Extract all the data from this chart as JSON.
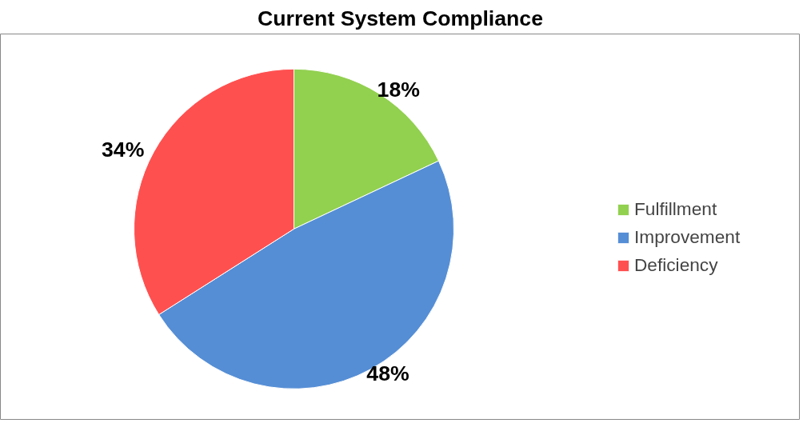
{
  "chart_data": {
    "type": "pie",
    "title": "Current System Compliance",
    "categories": [
      "Fulfillment",
      "Improvement",
      "Deficiency"
    ],
    "values": [
      18,
      48,
      34
    ],
    "colors": [
      "#92d050",
      "#558ed5",
      "#ff5050"
    ],
    "value_labels": [
      "18%",
      "48%",
      "34%"
    ],
    "legend": "right"
  }
}
